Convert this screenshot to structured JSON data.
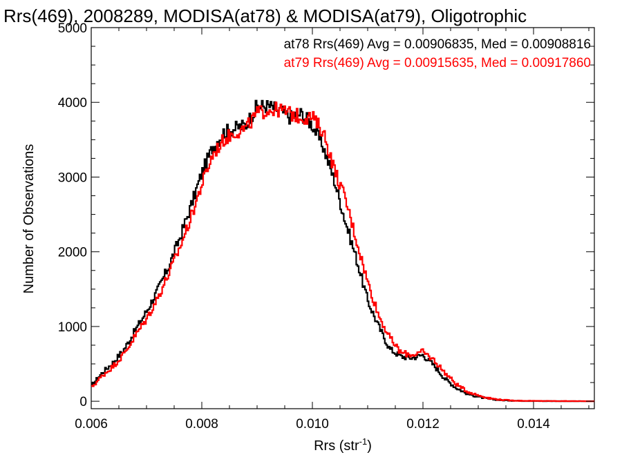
{
  "chart_data": {
    "type": "line",
    "title": "Rrs(469), 2008289, MODISA(at78) & MODISA(at79), Oligotrophic",
    "xlabel": "Rrs (str",
    "xlabel_sup": "-1",
    "xlabel_close": ")",
    "ylabel": "Number of Observations",
    "xlim": [
      0.006,
      0.0151
    ],
    "ylim": [
      -100,
      5000
    ],
    "x_ticks": [
      0.006,
      0.008,
      0.01,
      0.012,
      0.014
    ],
    "x_tick_labels": [
      "0.006",
      "0.008",
      "0.010",
      "0.012",
      "0.014"
    ],
    "y_ticks": [
      0,
      1000,
      2000,
      3000,
      4000,
      5000
    ],
    "y_tick_labels": [
      "0",
      "1000",
      "2000",
      "3000",
      "4000",
      "5000"
    ],
    "grid": false,
    "annotations": [
      {
        "text": "at78 Rrs(469) Avg = 0.00906835, Med = 0.00908816",
        "color": "#000000"
      },
      {
        "text": "at79 Rrs(469) Avg = 0.00915635, Med = 0.00917860",
        "color": "#ff0000"
      }
    ],
    "series": [
      {
        "color": "#000000",
        "x": [
          0.006,
          0.0062,
          0.0064,
          0.0066,
          0.0068,
          0.007,
          0.0072,
          0.0074,
          0.0076,
          0.0078,
          0.008,
          0.0082,
          0.0084,
          0.0086,
          0.0088,
          0.009,
          0.0092,
          0.0094,
          0.0096,
          0.0098,
          0.01,
          0.0102,
          0.0104,
          0.0106,
          0.0108,
          0.011,
          0.0112,
          0.0114,
          0.0116,
          0.0118,
          0.012,
          0.0122,
          0.0124,
          0.0126,
          0.0128,
          0.013,
          0.0132,
          0.0134,
          0.0136,
          0.0138,
          0.014,
          0.0145,
          0.0151
        ],
        "y": [
          200,
          380,
          520,
          700,
          950,
          1200,
          1480,
          1800,
          2180,
          2600,
          3050,
          3400,
          3600,
          3650,
          3700,
          3950,
          3950,
          3900,
          3800,
          3850,
          3700,
          3400,
          2950,
          2400,
          1900,
          1350,
          1000,
          700,
          600,
          580,
          620,
          480,
          300,
          180,
          100,
          60,
          30,
          15,
          8,
          5,
          3,
          1,
          0
        ]
      },
      {
        "color": "#ff0000",
        "x": [
          0.006,
          0.0062,
          0.0064,
          0.0066,
          0.0068,
          0.007,
          0.0072,
          0.0074,
          0.0076,
          0.0078,
          0.008,
          0.0082,
          0.0084,
          0.0086,
          0.0088,
          0.009,
          0.0092,
          0.0094,
          0.0096,
          0.0098,
          0.01,
          0.0102,
          0.0104,
          0.0106,
          0.0108,
          0.011,
          0.0112,
          0.0114,
          0.0116,
          0.0118,
          0.012,
          0.0122,
          0.0124,
          0.0126,
          0.0128,
          0.013,
          0.0132,
          0.0134,
          0.0136,
          0.0138,
          0.014,
          0.0145,
          0.0151
        ],
        "y": [
          180,
          340,
          470,
          640,
          880,
          1100,
          1380,
          1700,
          2050,
          2450,
          2900,
          3300,
          3500,
          3600,
          3650,
          3850,
          3900,
          3900,
          3850,
          3800,
          3800,
          3600,
          3100,
          2700,
          2150,
          1600,
          1150,
          850,
          650,
          620,
          660,
          550,
          380,
          230,
          130,
          80,
          40,
          20,
          10,
          6,
          4,
          2,
          0
        ]
      }
    ]
  }
}
